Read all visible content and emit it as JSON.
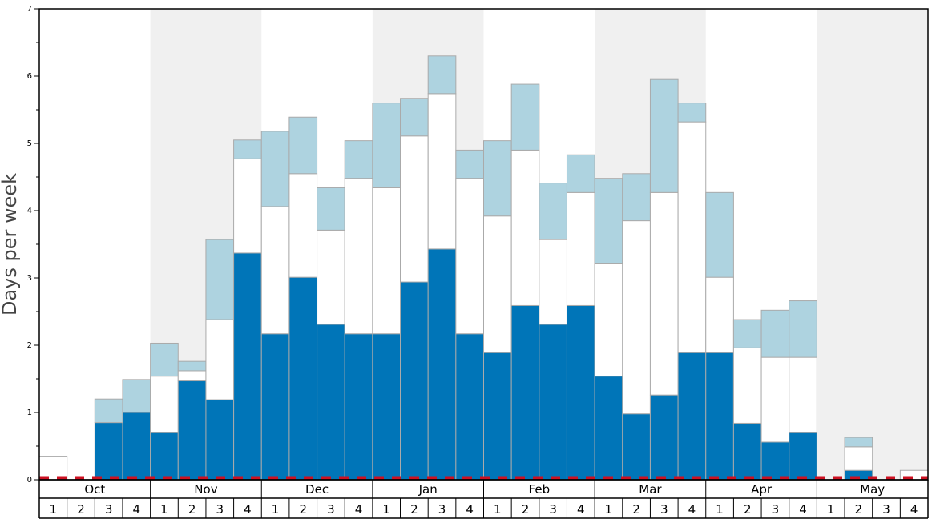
{
  "chart_data": {
    "type": "bar",
    "ylabel": "Days per week",
    "ylim": [
      0,
      7
    ],
    "y_ticks": [
      "0",
      "1",
      "2",
      "3",
      "4",
      "5",
      "6",
      "7"
    ],
    "months": [
      "Oct",
      "Nov",
      "Dec",
      "Jan",
      "Feb",
      "Mar",
      "Apr",
      "May"
    ],
    "week_labels": [
      "1",
      "2",
      "3",
      "4"
    ],
    "colors": {
      "series_1": "#0075b8",
      "series_2": "#ffffff",
      "series_3": "#aed3e0",
      "band": "#f0f0f0",
      "outline": "#aaaaaa",
      "baseline_dash": "#cc1122"
    },
    "stack_values": [
      [
        0.0,
        0.0,
        0.85,
        1.0,
        0.7,
        1.47,
        1.19,
        3.37,
        2.17,
        3.01,
        2.31,
        2.17,
        2.17,
        2.94,
        3.43,
        2.17,
        1.89,
        2.59,
        2.31,
        2.59,
        1.54,
        0.98,
        1.26,
        1.89,
        1.89,
        0.84,
        0.56,
        0.7,
        0.0,
        0.14,
        0.0,
        0.0
      ],
      [
        0.35,
        0.0,
        0.0,
        0.0,
        0.84,
        0.15,
        1.19,
        1.4,
        1.89,
        1.54,
        1.4,
        2.31,
        2.17,
        2.17,
        2.31,
        2.31,
        2.03,
        2.31,
        1.26,
        1.68,
        1.68,
        2.87,
        3.01,
        3.43,
        1.12,
        1.12,
        1.26,
        1.12,
        0.0,
        0.35,
        0.0,
        0.14
      ],
      [
        0.0,
        0.0,
        0.35,
        0.49,
        0.49,
        0.14,
        1.19,
        0.28,
        1.12,
        0.84,
        0.63,
        0.56,
        1.26,
        0.56,
        0.56,
        0.42,
        1.12,
        0.98,
        0.84,
        0.56,
        1.26,
        0.7,
        1.68,
        0.28,
        1.26,
        0.42,
        0.7,
        0.84,
        0.0,
        0.14,
        0.0,
        0.0
      ]
    ]
  }
}
